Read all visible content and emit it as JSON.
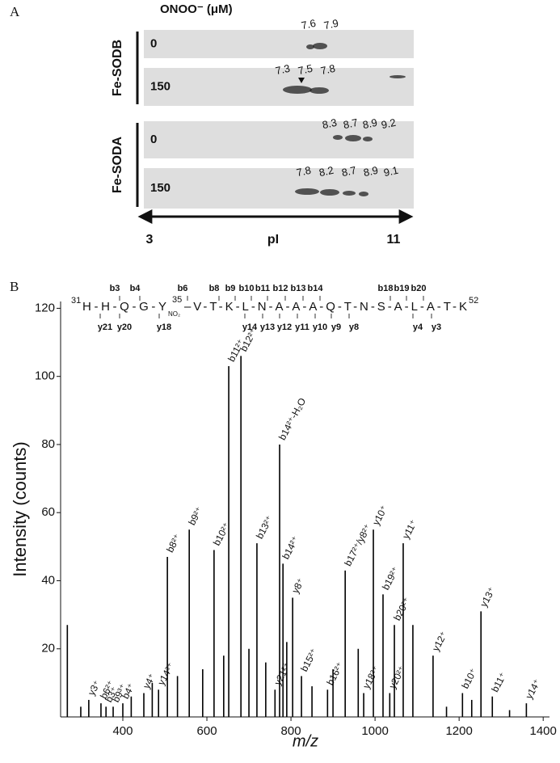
{
  "panel_a": {
    "label": "A",
    "header": "ONOO⁻ (μM)",
    "groups": [
      {
        "name": "Fe-SODB",
        "rows": [
          {
            "dose": "0",
            "spots": [
              "7.6",
              "7.9"
            ]
          },
          {
            "dose": "150",
            "spots": [
              "7.3",
              "7.5",
              "7.8"
            ]
          }
        ]
      },
      {
        "name": "Fe-SODA",
        "rows": [
          {
            "dose": "0",
            "spots": [
              "8.3",
              "8.7",
              "8.9",
              "9.2"
            ]
          },
          {
            "dose": "150",
            "spots": [
              "7.8",
              "8.2",
              "8.7",
              "8.9",
              "9.1"
            ]
          }
        ]
      }
    ],
    "axis": {
      "left": "3",
      "center": "pI",
      "right": "11"
    }
  },
  "panel_b": {
    "label": "B",
    "sequence": {
      "start": "31",
      "head": "H-H-Q-G-Y",
      "mod_position": "35",
      "mod": "NO₂",
      "tail": "–V-T-K-L-N-A-A-A-Q-T-N-S-A-L-A-T-K",
      "end": "52"
    },
    "b_ions": [
      "b3",
      "b4",
      "b6",
      "b8",
      "b9",
      "b10",
      "b11",
      "b12",
      "b13",
      "b14",
      "b18",
      "b19",
      "b20"
    ],
    "y_ions": [
      "y21",
      "y20",
      "y18",
      "y14",
      "y13",
      "y12",
      "y11",
      "y10",
      "y9",
      "y8",
      "y4",
      "y3"
    ]
  },
  "chart_data": {
    "type": "stick",
    "xlabel": "m/z",
    "ylabel": "Intensity (counts)",
    "xlim": [
      252,
      1415
    ],
    "ylim": [
      0,
      122
    ],
    "xticks": [
      400,
      600,
      800,
      1000,
      1200,
      1400
    ],
    "yticks": [
      20,
      40,
      60,
      80,
      100,
      120
    ],
    "x": [
      319,
      348,
      360,
      377,
      400,
      450,
      485,
      506,
      558,
      617,
      652,
      681,
      719,
      762,
      773,
      781,
      804,
      825,
      887,
      929,
      973,
      996,
      1019,
      1035,
      1046,
      1067,
      1138,
      1208,
      1252,
      1279,
      1360,
      268,
      300,
      420,
      470,
      530,
      590,
      640,
      700,
      740,
      790,
      850,
      900,
      960,
      1090,
      1170,
      1230,
      1320
    ],
    "values": [
      5,
      4,
      3,
      3,
      4,
      7,
      8,
      47,
      55,
      49,
      103,
      106,
      51,
      8,
      80,
      45,
      35,
      12,
      8,
      43,
      7,
      55,
      36,
      7,
      27,
      51,
      18,
      7,
      31,
      6,
      4,
      27,
      3,
      6,
      10,
      12,
      14,
      18,
      20,
      16,
      22,
      9,
      14,
      20,
      27,
      3,
      5,
      2
    ],
    "labels": [
      "y3⁺",
      "b6²⁺",
      "b3⁺",
      "b9³⁺",
      "b4⁺",
      "y4⁺",
      "y14³⁺",
      "b8²⁺",
      "b9²⁺",
      "b10²⁺",
      "b11²⁺",
      "b12²⁺",
      "b13²⁺",
      "y21²⁺",
      "b14²⁺-H₂O",
      "b14²⁺",
      "y8⁺",
      "b15²⁺",
      "b16²⁺",
      "b17²⁺/y8²⁺",
      "y18²⁺",
      "y10⁺",
      "b19²⁺",
      "y20²⁺",
      "b20²⁺",
      "y11⁺",
      "y12⁺",
      "b10⁺",
      "y13⁺",
      "b11⁺",
      "y14⁺",
      null,
      null,
      null,
      null,
      null,
      null,
      null,
      null,
      null,
      null,
      null,
      null,
      null,
      null,
      null,
      null,
      null
    ],
    "colors": {
      "b": "#e3151c",
      "y": "#1d1dd6",
      "stick": "#000000"
    }
  }
}
